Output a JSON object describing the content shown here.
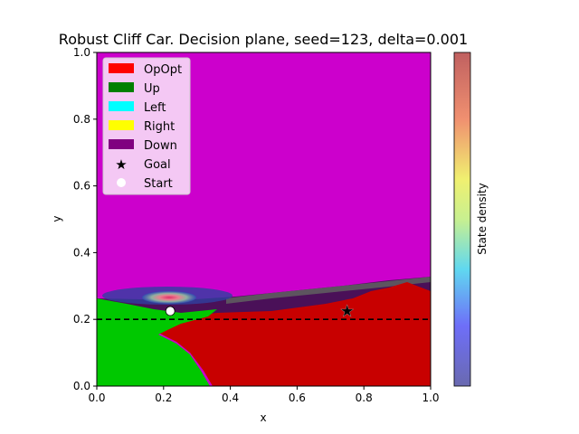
{
  "chart_data": {
    "type": "heatmap",
    "title": "Robust Cliff Car. Decision plane, seed=123, delta=0.001",
    "xlabel": "x",
    "ylabel": "y",
    "xlim": [
      0.0,
      1.0
    ],
    "ylim": [
      0.0,
      1.0
    ],
    "xticks": [
      "0.0",
      "0.2",
      "0.4",
      "0.6",
      "0.8",
      "1.0"
    ],
    "yticks": [
      "0.0",
      "0.2",
      "0.4",
      "0.6",
      "0.8",
      "1.0"
    ],
    "grid": false,
    "legend_position": "top-left",
    "legend": [
      {
        "label": "OpOpt",
        "color": "#ff0000",
        "kind": "patch"
      },
      {
        "label": "Up",
        "color": "#008000",
        "kind": "patch"
      },
      {
        "label": "Left",
        "color": "#00ffff",
        "kind": "patch"
      },
      {
        "label": "Right",
        "color": "#ffff00",
        "kind": "patch"
      },
      {
        "label": "Down",
        "color": "#800080",
        "kind": "patch"
      },
      {
        "label": "Goal",
        "color": "#ffffff",
        "kind": "star"
      },
      {
        "label": "Start",
        "color": "#ffffff",
        "kind": "circle"
      }
    ],
    "regions": [
      {
        "action": "Down",
        "color": "#cc00cc",
        "description": "upper area above the diagonal band"
      },
      {
        "action": "OpOpt",
        "color": "#c80000",
        "description": "lower right area below y≈0.23–0.32"
      },
      {
        "action": "Up",
        "color": "#00c800",
        "description": "lower left area x<0.35"
      },
      {
        "action": "band",
        "color": "#5a1a5a",
        "description": "narrow rising band from y≈0.22 to y≈0.33"
      }
    ],
    "markers": [
      {
        "name": "Start",
        "x": 0.22,
        "y": 0.225
      },
      {
        "name": "Goal",
        "x": 0.75,
        "y": 0.225
      }
    ],
    "hline": {
      "y": 0.2,
      "style": "dashed",
      "color": "#000000"
    },
    "density_peak": {
      "x": 0.22,
      "y": 0.265
    },
    "colorbar": {
      "label": "State density",
      "colormap": "jet"
    }
  }
}
